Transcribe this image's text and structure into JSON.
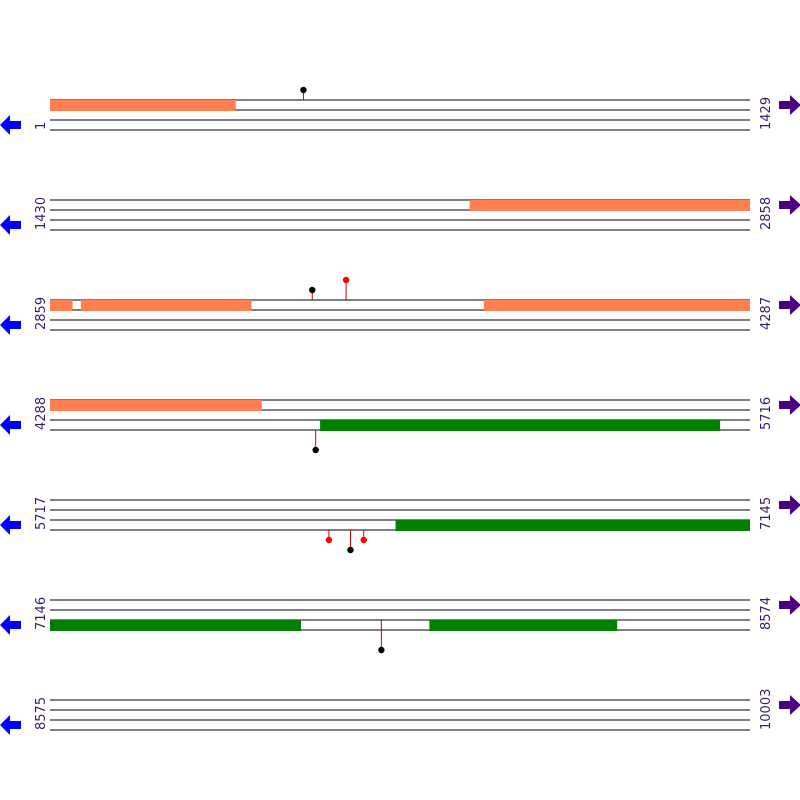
{
  "colors": {
    "line": "#000000",
    "feature_a": "#ff7f50",
    "feature_b": "#008000",
    "marker_black": "#000000",
    "marker_red": "#ff0000",
    "stem": "#cc0000",
    "arrow_left": "#0000ff",
    "arrow_right": "#4b0082",
    "label": "#3b1c6b"
  },
  "icons": {
    "left_arrow": "left-arrow-icon",
    "right_arrow": "right-arrow-icon"
  },
  "rows": [
    {
      "start": "1",
      "end": "1429",
      "start_num": 1,
      "end_num": 1429,
      "features": [
        {
          "track": 1,
          "start": 1,
          "end": 380,
          "kind": "a"
        }
      ],
      "markers": [
        {
          "pos": 518,
          "track": 1,
          "side": "up",
          "level": 1,
          "color": "black"
        }
      ]
    },
    {
      "start": "1430",
      "end": "2858",
      "start_num": 1430,
      "end_num": 2858,
      "features": [
        {
          "track": 1,
          "start": 2286,
          "end": 2858,
          "kind": "a"
        }
      ],
      "markers": []
    },
    {
      "start": "2859",
      "end": "4287",
      "start_num": 2859,
      "end_num": 4287,
      "features": [
        {
          "track": 1,
          "start": 2859,
          "end": 2905,
          "kind": "a"
        },
        {
          "track": 1,
          "start": 2922,
          "end": 3270,
          "kind": "a"
        },
        {
          "track": 1,
          "start": 3744,
          "end": 4287,
          "kind": "a"
        }
      ],
      "markers": [
        {
          "pos": 3394,
          "track": 1,
          "side": "up",
          "level": 1,
          "color": "black"
        },
        {
          "pos": 3463,
          "track": 1,
          "side": "up",
          "level": 2,
          "color": "red"
        }
      ]
    },
    {
      "start": "4288",
      "end": "5716",
      "start_num": 4288,
      "end_num": 5716,
      "features": [
        {
          "track": 1,
          "start": 4288,
          "end": 4720,
          "kind": "a"
        },
        {
          "track": 3,
          "start": 4839,
          "end": 5655,
          "kind": "b"
        }
      ],
      "markers": [
        {
          "pos": 4830,
          "track": 4,
          "side": "down",
          "level": 2,
          "color": "black"
        }
      ]
    },
    {
      "start": "5717",
      "end": "7145",
      "start_num": 5717,
      "end_num": 7145,
      "features": [
        {
          "track": 3,
          "start": 6422,
          "end": 7145,
          "kind": "b"
        }
      ],
      "markers": [
        {
          "pos": 6286,
          "track": 4,
          "side": "down",
          "level": 1,
          "color": "red"
        },
        {
          "pos": 6330,
          "track": 4,
          "side": "down",
          "level": 2,
          "color": "black"
        },
        {
          "pos": 6357,
          "track": 4,
          "side": "down",
          "level": 1,
          "color": "red"
        }
      ]
    },
    {
      "start": "7146",
      "end": "8574",
      "start_num": 7146,
      "end_num": 8574,
      "features": [
        {
          "track": 3,
          "start": 7146,
          "end": 7658,
          "kind": "b"
        },
        {
          "track": 3,
          "start": 7920,
          "end": 8303,
          "kind": "b"
        }
      ],
      "markers": [
        {
          "pos": 7822,
          "track": 3,
          "side": "down",
          "level": 3,
          "color": "black"
        }
      ]
    },
    {
      "start": "8575",
      "end": "10003",
      "start_num": 8575,
      "end_num": 10003,
      "features": [],
      "markers": []
    }
  ]
}
